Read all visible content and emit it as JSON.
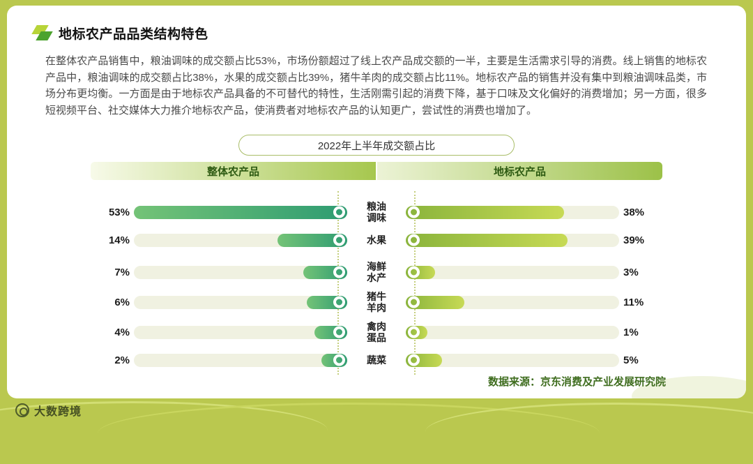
{
  "header": {
    "title": "地标农产品品类结构特色"
  },
  "intro": {
    "text": "在整体农产品销售中，粮油调味的成交额占比53%，市场份额超过了线上农产品成交额的一半，主要是生活需求引导的消费。线上销售的地标农产品中，粮油调味的成交额占比38%，水果的成交额占比39%，猪牛羊肉的成交额占比11%。地标农产品的销售并没有集中到粮油调味品类，市场分布更均衡。一方面是由于地标农产品具备的不可替代的特性，生活刚需引起的消费下降，基于口味及文化偏好的消费增加；另一方面，很多短视频平台、社交媒体大力推介地标农产品，使消费者对地标农产品的认知更广，尝试性的消费也增加了。"
  },
  "badge": {
    "label": "2022年上半年成交额占比"
  },
  "chart_data": {
    "type": "bar",
    "variant": "tornado",
    "title": "2022年上半年成交额占比",
    "categories": [
      "粮油\n调味",
      "水果",
      "海鲜\n水产",
      "猪牛\n羊肉",
      "禽肉\n蛋品",
      "蔬菜"
    ],
    "series": [
      {
        "name": "整体农产品",
        "side": "left",
        "values": [
          53,
          14,
          7,
          6,
          4,
          2
        ]
      },
      {
        "name": "地标农产品",
        "side": "right",
        "values": [
          38,
          39,
          3,
          11,
          1,
          5
        ]
      }
    ],
    "unit": "%",
    "xlim": [
      0,
      53
    ],
    "grid": false,
    "colors": {
      "left_bar": [
        "#74c377",
        "#2e9c72"
      ],
      "right_bar": [
        "#8ab43c",
        "#c7da55"
      ],
      "track": "#f0f1e1",
      "accent_green": "#2d5a12",
      "frame": "#bac84f"
    }
  },
  "footer": {
    "source": "数据来源：京东消费及产业发展研究院",
    "logo": "大数跨境"
  }
}
